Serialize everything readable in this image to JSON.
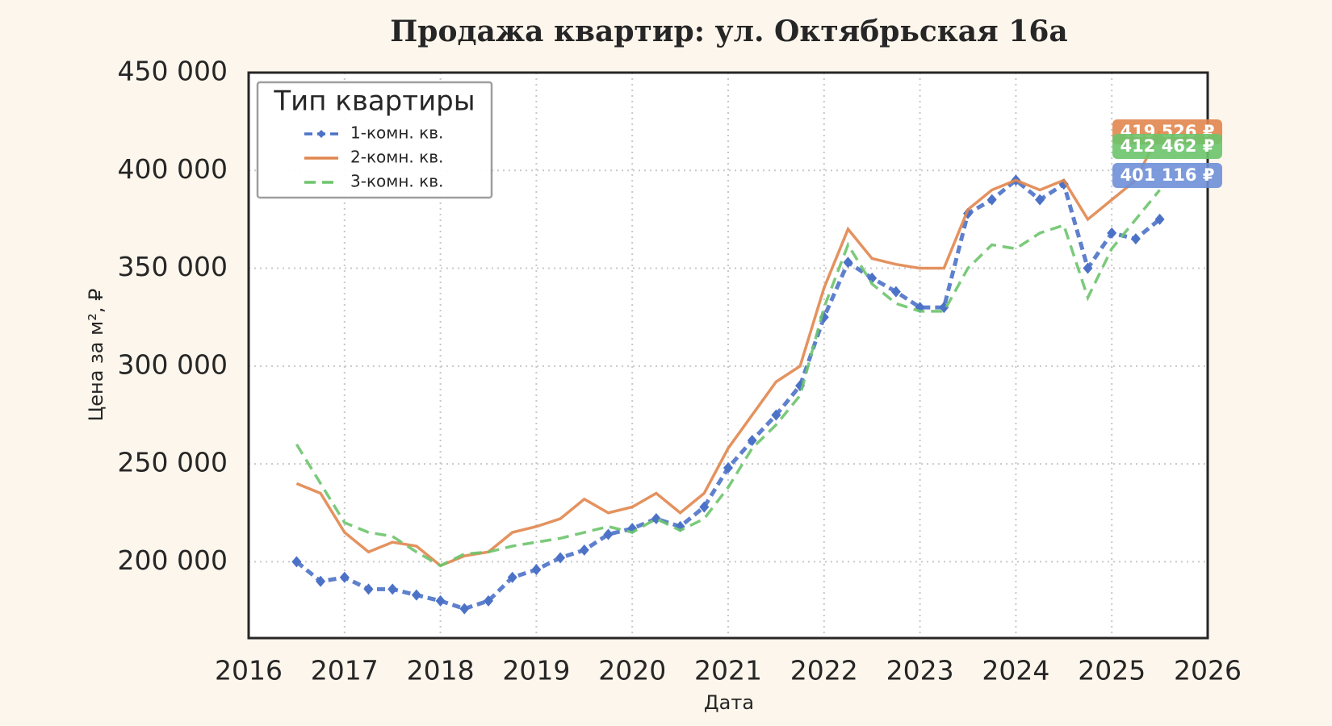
{
  "chart_data": {
    "type": "line",
    "title": "Продажа квартир: ул. Октябрьская 16а",
    "x_label": "Дата",
    "y_label": "Цена за м², ₽",
    "legend_title": "Тип квартиры",
    "legend_position": "upper left",
    "grid": true,
    "x": [
      2016.5,
      2016.75,
      2017.0,
      2017.25,
      2017.5,
      2017.75,
      2018.0,
      2018.25,
      2018.5,
      2018.75,
      2019.0,
      2019.25,
      2019.5,
      2019.75,
      2020.0,
      2020.25,
      2020.5,
      2020.75,
      2021.0,
      2021.25,
      2021.5,
      2021.75,
      2022.0,
      2022.25,
      2022.5,
      2022.75,
      2023.0,
      2023.25,
      2023.5,
      2023.75,
      2024.0,
      2024.25,
      2024.5,
      2024.75,
      2025.0,
      2025.25,
      2025.5
    ],
    "series": [
      {
        "name": "1-комн. кв.",
        "color": "#4c72c8",
        "style": "dashed-marker",
        "values": [
          200000,
          190000,
          192000,
          186000,
          186000,
          183000,
          180000,
          176000,
          180000,
          192000,
          196000,
          202000,
          206000,
          214000,
          217000,
          222000,
          218000,
          228000,
          248000,
          262000,
          275000,
          290000,
          325000,
          353000,
          345000,
          338000,
          330000,
          330000,
          378000,
          385000,
          395000,
          385000,
          393000,
          350000,
          368000,
          365000,
          375000
        ]
      },
      {
        "name": "2-комн. кв.",
        "color": "#e1864e",
        "style": "solid",
        "values": [
          240000,
          235000,
          215000,
          205000,
          210000,
          208000,
          198000,
          203000,
          205000,
          215000,
          218000,
          222000,
          232000,
          225000,
          228000,
          235000,
          225000,
          235000,
          258000,
          275000,
          292000,
          300000,
          340000,
          370000,
          355000,
          352000,
          350000,
          350000,
          380000,
          390000,
          395000,
          390000,
          395000,
          375000,
          385000,
          395000,
          420000
        ]
      },
      {
        "name": "3-комн. кв.",
        "color": "#6cc46c",
        "style": "dashed",
        "values": [
          260000,
          240000,
          220000,
          215000,
          213000,
          205000,
          198000,
          204000,
          205000,
          208000,
          210000,
          212000,
          215000,
          218000,
          215000,
          222000,
          216000,
          222000,
          238000,
          258000,
          270000,
          285000,
          330000,
          362000,
          342000,
          332000,
          328000,
          328000,
          350000,
          362000,
          360000,
          368000,
          372000,
          335000,
          360000,
          375000,
          390000
        ]
      }
    ],
    "annotations": [
      {
        "text": "419 526 ₽",
        "color": "#e1864e"
      },
      {
        "text": "412 462 ₽",
        "color": "#6cc46c"
      },
      {
        "text": "401 116 ₽",
        "color": "#6e8fd8"
      }
    ],
    "xlim": [
      2016,
      2026
    ],
    "xticks": [
      2016,
      2017,
      2018,
      2019,
      2020,
      2021,
      2022,
      2023,
      2024,
      2025,
      2026
    ],
    "ylim": [
      161000,
      450000
    ],
    "yticks": [
      {
        "value": 200000,
        "label": "200 000"
      },
      {
        "value": 250000,
        "label": "250 000"
      },
      {
        "value": 300000,
        "label": "300 000"
      },
      {
        "value": 350000,
        "label": "350 000"
      },
      {
        "value": 400000,
        "label": "400 000"
      },
      {
        "value": 450000,
        "label": "450 000"
      }
    ]
  }
}
